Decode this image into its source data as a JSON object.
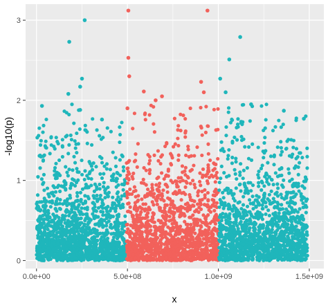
{
  "chart_data": {
    "type": "scatter",
    "title": "",
    "xlabel": "x",
    "ylabel": "-log10(p)",
    "xlim": [
      -60000000,
      1580000000
    ],
    "ylim": [
      -0.1,
      3.2
    ],
    "grid": true,
    "legend": "none",
    "x_ticks": [
      {
        "value": 0,
        "label": "0.0e+00"
      },
      {
        "value": 500000000,
        "label": "5.0e+08"
      },
      {
        "value": 1000000000,
        "label": "1.0e+09"
      },
      {
        "value": 1500000000,
        "label": "1.5e+09"
      }
    ],
    "y_ticks": [
      {
        "value": 0,
        "label": "0"
      },
      {
        "value": 1,
        "label": "1"
      },
      {
        "value": 2,
        "label": "2"
      },
      {
        "value": 3,
        "label": "3"
      }
    ],
    "colors": {
      "panel": "#ebebeb",
      "grid": "#ffffff",
      "teal": "#1fb6bb",
      "red": "#f2615b"
    },
    "groups": [
      {
        "color": "teal",
        "x_range": [
          0,
          490000000
        ],
        "count": 1500
      },
      {
        "color": "red",
        "x_range": [
          495000000,
          1000000000
        ],
        "count": 1400
      },
      {
        "color": "teal",
        "x_range": [
          1003000000,
          1490000000
        ],
        "count": 1500
      }
    ],
    "highlight_points": [
      {
        "x": 265000000,
        "y": 3.0,
        "color": "teal"
      },
      {
        "x": 180000000,
        "y": 2.73,
        "color": "teal"
      },
      {
        "x": 250000000,
        "y": 2.27,
        "color": "teal"
      },
      {
        "x": 240000000,
        "y": 2.17,
        "color": "teal"
      },
      {
        "x": 175000000,
        "y": 2.08,
        "color": "teal"
      },
      {
        "x": 30000000,
        "y": 1.93,
        "color": "teal"
      },
      {
        "x": 240000000,
        "y": 1.88,
        "color": "teal"
      },
      {
        "x": 360000000,
        "y": 1.76,
        "color": "teal"
      },
      {
        "x": 505000000,
        "y": 3.12,
        "color": "red"
      },
      {
        "x": 940000000,
        "y": 3.12,
        "color": "red"
      },
      {
        "x": 505000000,
        "y": 2.53,
        "color": "red"
      },
      {
        "x": 510000000,
        "y": 2.3,
        "color": "red"
      },
      {
        "x": 905000000,
        "y": 2.23,
        "color": "red"
      },
      {
        "x": 590000000,
        "y": 2.11,
        "color": "red"
      },
      {
        "x": 920000000,
        "y": 2.1,
        "color": "red"
      },
      {
        "x": 690000000,
        "y": 2.05,
        "color": "red"
      },
      {
        "x": 655000000,
        "y": 2.0,
        "color": "red"
      },
      {
        "x": 500000000,
        "y": 1.9,
        "color": "red"
      },
      {
        "x": 1120000000,
        "y": 2.79,
        "color": "teal"
      },
      {
        "x": 1060000000,
        "y": 2.51,
        "color": "teal"
      },
      {
        "x": 1010000000,
        "y": 2.27,
        "color": "teal"
      },
      {
        "x": 1040000000,
        "y": 2.1,
        "color": "teal"
      },
      {
        "x": 1180000000,
        "y": 1.95,
        "color": "teal"
      },
      {
        "x": 1360000000,
        "y": 1.87,
        "color": "teal"
      },
      {
        "x": 1470000000,
        "y": 1.77,
        "color": "teal"
      }
    ]
  }
}
